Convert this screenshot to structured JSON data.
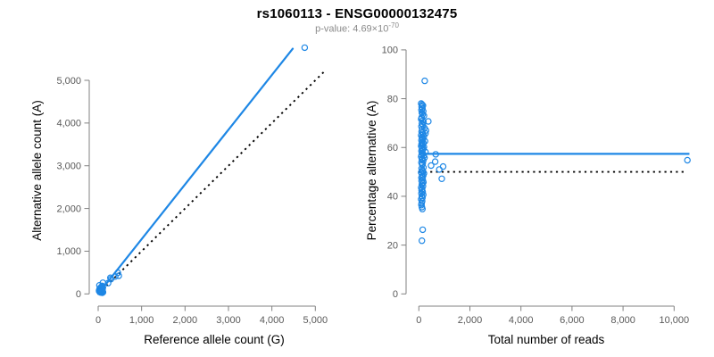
{
  "colors": {
    "accent_blue": "#1E87E5",
    "dotted_black": "#000000",
    "axis_gray": "#808080",
    "tick_label_gray": "#595959",
    "subtitle_gray": "#8a8a8a",
    "title_black": "#000000",
    "background": "#ffffff"
  },
  "chart_data": {
    "type": "scatter",
    "title": "rs1060113 - ENSG00000132475",
    "subtitle_prefix": "p-value: 4.69×10",
    "subtitle_exponent": "-70",
    "panels": [
      {
        "id": "allele-counts",
        "xlabel": "Reference allele count (G)",
        "ylabel": "Alternative allele count (A)",
        "xlim": [
          0,
          5000
        ],
        "ylim": [
          0,
          5000
        ],
        "xticks": [
          0,
          1000,
          2000,
          3000,
          4000,
          5000
        ],
        "xtick_labels": [
          "0",
          "1,000",
          "2,000",
          "3,000",
          "4,000",
          "5,000"
        ],
        "yticks": [
          0,
          1000,
          2000,
          3000,
          4000,
          5000
        ],
        "ytick_labels": [
          "0",
          "1,000",
          "2,000",
          "3,000",
          "4,000",
          "5,000"
        ],
        "grid": false,
        "legend": "none",
        "regression_line": {
          "style": "solid",
          "x1": 0,
          "y1": 0,
          "x2": 4480,
          "y2": 5740
        },
        "identity_line": {
          "style": "dotted",
          "x1": 0,
          "y1": 0,
          "x2": 5250,
          "y2": 5250
        }
      },
      {
        "id": "percentage-vs-reads",
        "xlabel": "Total number of reads",
        "ylabel": "Percentage alternative (A)",
        "xlim": [
          0,
          10000
        ],
        "ylim": [
          0,
          100
        ],
        "xticks": [
          0,
          2000,
          4000,
          6000,
          8000,
          10000
        ],
        "xtick_labels": [
          "0",
          "2,000",
          "4,000",
          "6,000",
          "8,000",
          "10,000"
        ],
        "yticks": [
          0,
          20,
          40,
          60,
          80,
          100
        ],
        "ytick_labels": [
          "0",
          "20",
          "40",
          "60",
          "80",
          "100"
        ],
        "grid": false,
        "legend": "none",
        "mean_line": {
          "style": "solid",
          "y": 57.4,
          "x1": 0,
          "x2": 10600
        },
        "null_line": {
          "style": "dotted",
          "y": 50,
          "x1": 0,
          "x2": 10450
        }
      }
    ],
    "points_total_pct": [
      [
        230,
        87.3
      ],
      [
        90,
        78
      ],
      [
        130,
        77.6
      ],
      [
        160,
        77.2
      ],
      [
        110,
        76.7
      ],
      [
        140,
        76
      ],
      [
        100,
        75.4
      ],
      [
        170,
        74.8
      ],
      [
        120,
        74.2
      ],
      [
        150,
        73.6
      ],
      [
        200,
        73
      ],
      [
        110,
        72.3
      ],
      [
        90,
        71.6
      ],
      [
        140,
        71
      ],
      [
        370,
        70.7
      ],
      [
        180,
        70.4
      ],
      [
        120,
        69.8
      ],
      [
        160,
        69.2
      ],
      [
        100,
        68.6
      ],
      [
        220,
        68
      ],
      [
        130,
        67.5
      ],
      [
        280,
        67
      ],
      [
        110,
        66.5
      ],
      [
        150,
        66
      ],
      [
        260,
        65.8
      ],
      [
        170,
        65.3
      ],
      [
        90,
        65
      ],
      [
        200,
        64.6
      ],
      [
        120,
        64.2
      ],
      [
        140,
        63.8
      ],
      [
        160,
        63.4
      ],
      [
        100,
        63
      ],
      [
        240,
        62.6
      ],
      [
        130,
        62.2
      ],
      [
        180,
        61.8
      ],
      [
        110,
        61.4
      ],
      [
        150,
        61
      ],
      [
        90,
        60.6
      ],
      [
        200,
        60.2
      ],
      [
        120,
        59.8
      ],
      [
        170,
        59.4
      ],
      [
        140,
        59
      ],
      [
        100,
        58.6
      ],
      [
        260,
        58.2
      ],
      [
        130,
        57.8
      ],
      [
        160,
        57.4
      ],
      [
        660,
        57.2
      ],
      [
        110,
        57
      ],
      [
        190,
        56.6
      ],
      [
        90,
        56.2
      ],
      [
        220,
        55.8
      ],
      [
        140,
        55.4
      ],
      [
        120,
        55
      ],
      [
        170,
        54.6
      ],
      [
        640,
        54.2
      ],
      [
        100,
        53.8
      ],
      [
        150,
        53.4
      ],
      [
        130,
        53
      ],
      [
        480,
        52.6
      ],
      [
        950,
        52.2
      ],
      [
        180,
        51.8
      ],
      [
        110,
        51.4
      ],
      [
        800,
        51
      ],
      [
        140,
        50.6
      ],
      [
        160,
        50.2
      ],
      [
        90,
        49.8
      ],
      [
        200,
        49.4
      ],
      [
        120,
        49
      ],
      [
        170,
        48.5
      ],
      [
        130,
        48
      ],
      [
        100,
        47.6
      ],
      [
        900,
        47.2
      ],
      [
        150,
        46.8
      ],
      [
        110,
        46.3
      ],
      [
        180,
        45.8
      ],
      [
        140,
        45.3
      ],
      [
        120,
        44.8
      ],
      [
        160,
        44.2
      ],
      [
        90,
        43.6
      ],
      [
        130,
        43
      ],
      [
        110,
        42.4
      ],
      [
        150,
        41.8
      ],
      [
        100,
        41.2
      ],
      [
        170,
        40.6
      ],
      [
        120,
        40
      ],
      [
        140,
        39.4
      ],
      [
        90,
        38.8
      ],
      [
        130,
        38
      ],
      [
        110,
        37.2
      ],
      [
        100,
        36.4
      ],
      [
        120,
        35.6
      ],
      [
        140,
        34.8
      ],
      [
        150,
        26.3
      ],
      [
        120,
        21.8
      ],
      [
        10520,
        54.8
      ]
    ]
  }
}
